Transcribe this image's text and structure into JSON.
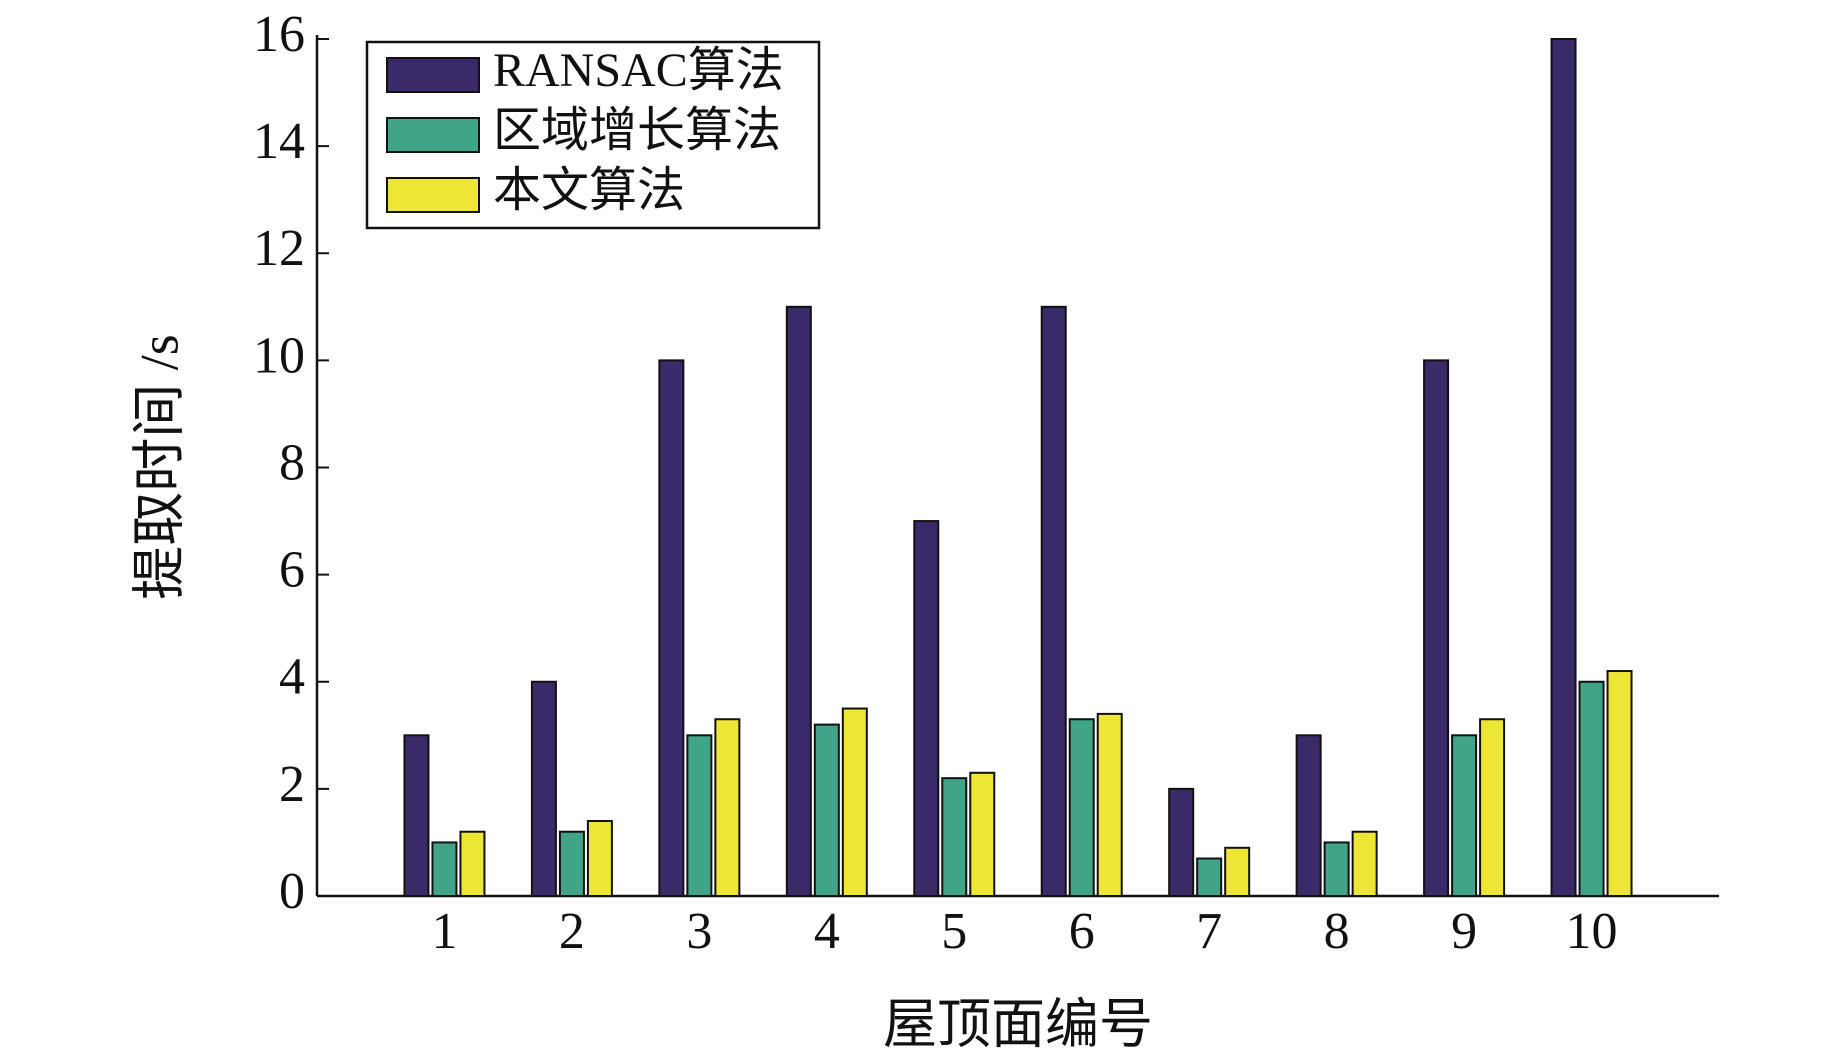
{
  "chart_data": {
    "type": "bar",
    "xlabel": "屋顶面编号",
    "ylabel": "提取时间 /s",
    "categories": [
      "1",
      "2",
      "3",
      "4",
      "5",
      "6",
      "7",
      "8",
      "9",
      "10"
    ],
    "series": [
      {
        "name": "RANSAC算法",
        "color": "#3a2a6a",
        "values": [
          3,
          4,
          10,
          11,
          7,
          11,
          2,
          3,
          10,
          16
        ]
      },
      {
        "name": "区域增长算法",
        "color": "#41a488",
        "values": [
          1,
          1.2,
          3,
          3.2,
          2.2,
          3.3,
          0.7,
          1,
          3,
          4
        ]
      },
      {
        "name": "本文算法",
        "color": "#eee635",
        "values": [
          1.2,
          1.4,
          3.3,
          3.5,
          2.3,
          3.4,
          0.9,
          1.2,
          3.3,
          4.2
        ]
      }
    ],
    "ylim": [
      0,
      16
    ],
    "yticks": [
      0,
      2,
      4,
      6,
      8,
      10,
      12,
      14,
      16
    ],
    "legend": "upper left"
  }
}
